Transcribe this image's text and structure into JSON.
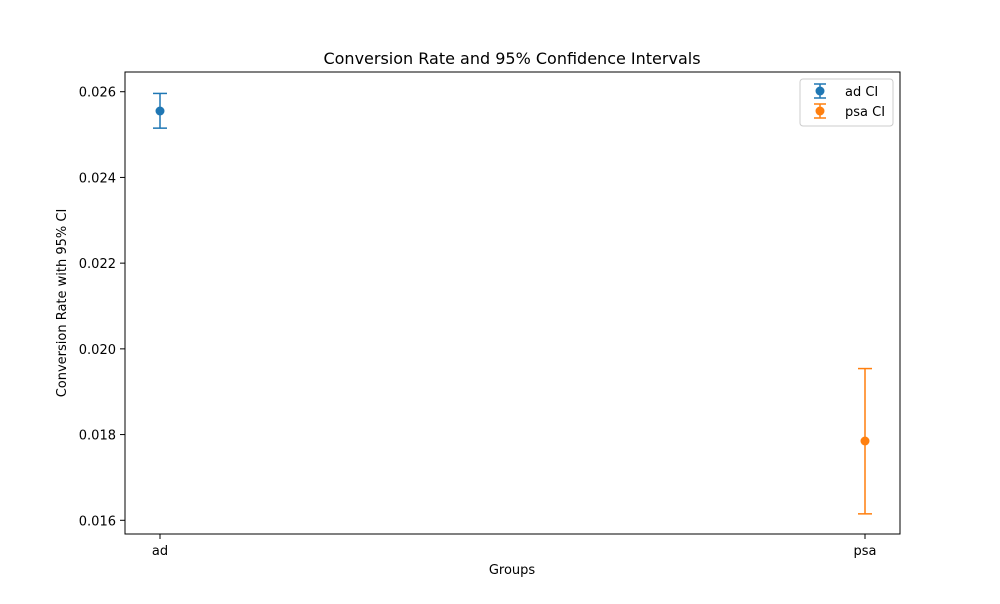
{
  "chart_data": {
    "type": "scatter",
    "title": "Conversion Rate and 95% Confidence Intervals",
    "xlabel": "Groups",
    "ylabel": "Conversion Rate with 95% CI",
    "categories": [
      "ad",
      "psa"
    ],
    "ylim": [
      0.01568,
      0.02646
    ],
    "yticks": [
      0.016,
      0.018,
      0.02,
      0.022,
      0.024,
      0.026
    ],
    "ytick_labels": [
      "0.016",
      "0.018",
      "0.020",
      "0.022",
      "0.024",
      "0.026"
    ],
    "grid": false,
    "legend_position": "top-right",
    "series": [
      {
        "name": "ad CI",
        "category": "ad",
        "value": 0.02555,
        "ci_low": 0.02515,
        "ci_high": 0.02596,
        "color": "#1f77b4"
      },
      {
        "name": "psa CI",
        "category": "psa",
        "value": 0.01785,
        "ci_low": 0.01615,
        "ci_high": 0.01954,
        "color": "#ff7f0e"
      }
    ]
  }
}
